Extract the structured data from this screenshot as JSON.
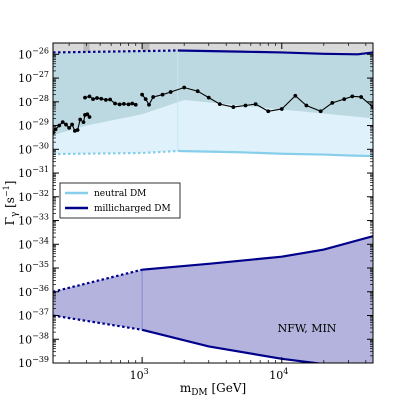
{
  "chart_data": {
    "type": "line",
    "title": "",
    "xlabel": "m_DM [GeV]",
    "ylabel": "Γ_γ [s^-1]",
    "x_scale": "log",
    "y_scale": "log",
    "xlim": [
      230,
      45000
    ],
    "ylim": [
      1e-39,
      3e-26
    ],
    "grid": false,
    "legend_position": "center-left",
    "annotation": "NFW, MIN",
    "colors": {
      "excluded_top": "#d9d9d9",
      "neutral_fill": "#dff2fb",
      "neutral_line": "#87ceeb",
      "milli_fill": "#b3b3de",
      "milli_line": "#00008b",
      "teal_fill": "#b8d6df",
      "gray_band": "#b9b9b9",
      "data_line": "#000000"
    },
    "x_ticks": [
      {
        "value": 1000,
        "label": "10",
        "exp": "3"
      },
      {
        "value": 10000,
        "label": "10",
        "exp": "4"
      }
    ],
    "y_ticks": [
      {
        "value": 1e-26,
        "label": "10",
        "exp": "−26"
      },
      {
        "value": 1e-27,
        "label": "10",
        "exp": "−27"
      },
      {
        "value": 1e-28,
        "label": "10",
        "exp": "−28"
      },
      {
        "value": 1e-29,
        "label": "10",
        "exp": "−29"
      },
      {
        "value": 1e-30,
        "label": "10",
        "exp": "−30"
      },
      {
        "value": 1e-31,
        "label": "10",
        "exp": "−31"
      },
      {
        "value": 1e-32,
        "label": "10",
        "exp": "−32"
      },
      {
        "value": 1e-33,
        "label": "10",
        "exp": "−33"
      },
      {
        "value": 1e-34,
        "label": "10",
        "exp": "−34"
      },
      {
        "value": 1e-35,
        "label": "10",
        "exp": "−35"
      },
      {
        "value": 1e-36,
        "label": "10",
        "exp": "−36"
      },
      {
        "value": 1e-37,
        "label": "10",
        "exp": "−37"
      },
      {
        "value": 1e-38,
        "label": "10",
        "exp": "−38"
      },
      {
        "value": 1e-39,
        "label": "10",
        "exp": "−39"
      }
    ],
    "gray_bands": [
      {
        "x_min": 380,
        "x_max": 420
      },
      {
        "x_min": 1000,
        "x_max": 1130
      }
    ],
    "series": [
      {
        "name": "neutral DM",
        "kind": "band",
        "upper": {
          "dotted": [
            [
              230,
              1.2e-26
            ],
            [
              1800,
              1.45e-26
            ]
          ],
          "solid": [
            [
              1800,
              1.45e-26
            ],
            [
              5000,
              1.3e-26
            ],
            [
              10000,
              1.2e-26
            ],
            [
              20000,
              1.05e-26
            ],
            [
              35000,
              1e-26
            ],
            [
              45000,
              1.2e-26
            ]
          ]
        },
        "lower": {
          "dotted": [
            [
              230,
              6.3e-31
            ],
            [
              1000,
              7e-31
            ],
            [
              1800,
              8.5e-31
            ]
          ],
          "solid": [
            [
              1800,
              8.5e-31
            ],
            [
              5000,
              7.5e-31
            ],
            [
              10000,
              6.5e-31
            ],
            [
              20000,
              6e-31
            ],
            [
              30000,
              5.5e-31
            ],
            [
              45000,
              5.2e-31
            ]
          ]
        }
      },
      {
        "name": "millicharged DM",
        "kind": "band",
        "upper": {
          "dotted": [
            [
              230,
              1e-36
            ],
            [
              1000,
              8.5e-36
            ]
          ],
          "solid": [
            [
              1000,
              8.5e-36
            ],
            [
              3000,
              1.5e-35
            ],
            [
              10000,
              3e-35
            ],
            [
              20000,
              6e-35
            ],
            [
              45000,
              2.2e-34
            ]
          ]
        },
        "lower": {
          "dotted": [
            [
              230,
              1e-37
            ],
            [
              1000,
              2.5e-38
            ]
          ],
          "solid": [
            [
              1000,
              2.5e-38
            ],
            [
              3000,
              5e-39
            ],
            [
              10000,
              1.5e-39
            ],
            [
              20000,
              9e-40
            ],
            [
              45000,
              6e-40
            ]
          ]
        }
      },
      {
        "name": "",
        "kind": "data_line",
        "segments": [
          [
            [
              230,
              5e-30
            ],
            [
              240,
              7e-30
            ],
            [
              255,
              1e-29
            ],
            [
              270,
              1.4e-29
            ],
            [
              285,
              1.1e-29
            ],
            [
              300,
              8e-30
            ],
            [
              315,
              1.1e-29
            ],
            [
              330,
              6e-30
            ],
            [
              345,
              6.5e-30
            ],
            [
              360,
              1.8e-29
            ]
          ],
          [
            [
              380,
              1.4e-29
            ],
            [
              390,
              2.8e-29
            ],
            [
              405,
              3e-29
            ],
            [
              420,
              2.3e-29
            ]
          ],
          [
            [
              390,
              1.5e-28
            ],
            [
              420,
              1.7e-28
            ],
            [
              445,
              1.3e-28
            ],
            [
              475,
              1.45e-28
            ],
            [
              510,
              1.35e-28
            ],
            [
              550,
              1.2e-28
            ],
            [
              590,
              1.25e-28
            ],
            [
              640,
              8.5e-29
            ],
            [
              690,
              7.8e-29
            ],
            [
              740,
              8.2e-29
            ],
            [
              800,
              7.8e-29
            ],
            [
              850,
              8.5e-29
            ],
            [
              900,
              7.5e-29
            ]
          ],
          [
            [
              1000,
              2e-28
            ],
            [
              1060,
              1.3e-28
            ],
            [
              1120,
              7.5e-29
            ],
            [
              1200,
              1.6e-28
            ],
            [
              1400,
              2e-28
            ],
            [
              1600,
              2.6e-28
            ],
            [
              2000,
              4e-28
            ],
            [
              2500,
              2.8e-28
            ],
            [
              3000,
              1.5e-28
            ],
            [
              3600,
              8e-29
            ],
            [
              4500,
              6e-29
            ],
            [
              5500,
              7e-29
            ],
            [
              6500,
              8e-29
            ],
            [
              8000,
              4e-29
            ],
            [
              10000,
              5e-29
            ],
            [
              12500,
              1.8e-28
            ],
            [
              15000,
              7e-29
            ],
            [
              19000,
              4e-29
            ],
            [
              23000,
              9e-29
            ],
            [
              28000,
              1.3e-28
            ],
            [
              32000,
              1.7e-28
            ],
            [
              37000,
              1.6e-28
            ],
            [
              45000,
              6e-29
            ]
          ]
        ]
      }
    ],
    "legend": [
      {
        "label": "neutral DM",
        "color": "#87ceeb"
      },
      {
        "label": "millicharged DM",
        "color": "#00008b"
      }
    ]
  }
}
